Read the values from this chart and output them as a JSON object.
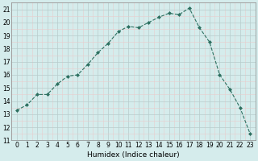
{
  "x": [
    0,
    1,
    2,
    3,
    4,
    5,
    6,
    7,
    8,
    9,
    10,
    11,
    12,
    13,
    14,
    15,
    16,
    17,
    18,
    19,
    20,
    21,
    22,
    23
  ],
  "y": [
    13.3,
    13.7,
    14.5,
    14.5,
    15.3,
    15.9,
    16.0,
    16.8,
    17.7,
    18.4,
    19.3,
    19.7,
    19.6,
    20.0,
    20.4,
    20.7,
    20.6,
    21.1,
    19.6,
    18.5,
    16.0,
    14.9,
    13.5,
    11.5
  ],
  "line_color": "#2d7060",
  "marker": "D",
  "marker_size": 2.0,
  "bg_color": "#d5ecec",
  "grid_major_color": "#b8cccc",
  "grid_minor_color": "#e8cccc",
  "xlabel": "Humidex (Indice chaleur)",
  "xlim": [
    -0.5,
    23.5
  ],
  "ylim": [
    11,
    21.5
  ],
  "yticks": [
    11,
    12,
    13,
    14,
    15,
    16,
    17,
    18,
    19,
    20,
    21
  ],
  "xticks": [
    0,
    1,
    2,
    3,
    4,
    5,
    6,
    7,
    8,
    9,
    10,
    11,
    12,
    13,
    14,
    15,
    16,
    17,
    18,
    19,
    20,
    21,
    22,
    23
  ],
  "label_fontsize": 6.5,
  "tick_fontsize": 5.5
}
